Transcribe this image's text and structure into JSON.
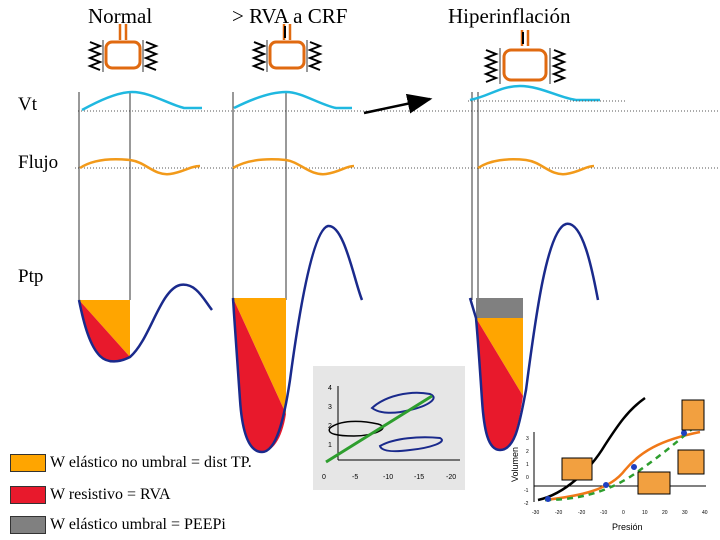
{
  "headers": {
    "normal": "Normal",
    "rva_crf": "> RVA a CRF",
    "hiperinflacion": "Hiperinflación"
  },
  "row_labels": {
    "vt": "Vt",
    "flujo": "Flujo",
    "ptp": "Ptp"
  },
  "legend": [
    {
      "label": "W elástico no umbral = dist TP.",
      "color": "#ffa500"
    },
    {
      "label": "W resistivo = RVA",
      "color": "#e8192c"
    },
    {
      "label": "W elástico umbral = PEEPi",
      "color": "#808080"
    }
  ],
  "inset_loops": {
    "y_ticks": [
      "4",
      "3",
      "2",
      "1"
    ],
    "x_ticks": [
      "0",
      "-5",
      "-10",
      "-15",
      "-20"
    ]
  },
  "pv_curve": {
    "ylabel": "Volumen",
    "xlabel": "Presión",
    "y_ticks": [
      "3",
      "2",
      "1",
      "0",
      "-1",
      "-2"
    ],
    "x_ticks": [
      "-30",
      "-20",
      "-20",
      "-10",
      "0",
      "10",
      "20",
      "30",
      "40"
    ]
  },
  "colors": {
    "vt_curve": "#1fb8e0",
    "flow_curve": "#f29a1a",
    "ptp_curve": "#1a2a8c",
    "orange": "#ffa500",
    "red": "#e8192c",
    "gray": "#808080"
  }
}
